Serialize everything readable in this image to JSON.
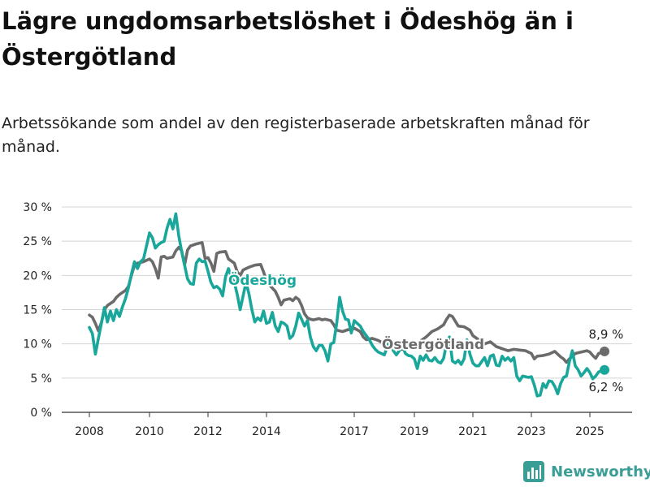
{
  "chart_data": {
    "type": "line",
    "title": "Lägre ungdomsarbetslöshet i Ödeshög än i Östergötland",
    "subtitle": "Arbetssökande som andel av den registerbaserade arbetskraften månad för månad.",
    "ylim": [
      0,
      30
    ],
    "yticks": [
      "0 %",
      "5 %",
      "10 %",
      "15 %",
      "20 %",
      "25 %",
      "30 %"
    ],
    "ytick_values": [
      0,
      5,
      10,
      15,
      20,
      25,
      30
    ],
    "xticks": [
      "2008",
      "2010",
      "2012",
      "2014",
      "2017",
      "2019",
      "2021",
      "2023",
      "2025"
    ],
    "xtick_values": [
      2008,
      2010,
      2012,
      2014,
      2017,
      2019,
      2021,
      2023,
      2025
    ],
    "grid": true,
    "series": [
      {
        "name": "Östergötland",
        "color": "#6b6b6b",
        "end_label": "8,9 %",
        "points": [
          [
            2008.0,
            14.2
          ],
          [
            2008.1,
            13.9
          ],
          [
            2008.2,
            13.0
          ],
          [
            2008.3,
            11.9
          ],
          [
            2008.4,
            13.1
          ],
          [
            2008.5,
            15.0
          ],
          [
            2008.6,
            15.6
          ],
          [
            2008.8,
            16.2
          ],
          [
            2008.9,
            16.8
          ],
          [
            2009.0,
            17.2
          ],
          [
            2009.1,
            17.5
          ],
          [
            2009.2,
            17.8
          ],
          [
            2009.3,
            18.4
          ],
          [
            2009.4,
            20.0
          ],
          [
            2009.5,
            21.5
          ],
          [
            2009.6,
            21.8
          ],
          [
            2009.8,
            22.0
          ],
          [
            2009.9,
            22.2
          ],
          [
            2010.0,
            22.4
          ],
          [
            2010.1,
            22.0
          ],
          [
            2010.2,
            21.0
          ],
          [
            2010.3,
            19.6
          ],
          [
            2010.4,
            22.7
          ],
          [
            2010.5,
            22.8
          ],
          [
            2010.6,
            22.5
          ],
          [
            2010.8,
            22.7
          ],
          [
            2010.9,
            23.6
          ],
          [
            2011.0,
            24.1
          ],
          [
            2011.1,
            23.6
          ],
          [
            2011.2,
            21.5
          ],
          [
            2011.3,
            23.7
          ],
          [
            2011.4,
            24.3
          ],
          [
            2011.6,
            24.6
          ],
          [
            2011.8,
            24.8
          ],
          [
            2011.9,
            22.5
          ],
          [
            2012.0,
            22.6
          ],
          [
            2012.1,
            21.8
          ],
          [
            2012.2,
            20.6
          ],
          [
            2012.3,
            23.2
          ],
          [
            2012.4,
            23.4
          ],
          [
            2012.6,
            23.5
          ],
          [
            2012.7,
            22.4
          ],
          [
            2012.9,
            21.8
          ],
          [
            2013.0,
            20.5
          ],
          [
            2013.1,
            20.0
          ],
          [
            2013.2,
            20.8
          ],
          [
            2013.4,
            21.2
          ],
          [
            2013.6,
            21.5
          ],
          [
            2013.8,
            21.6
          ],
          [
            2013.9,
            20.5
          ],
          [
            2014.0,
            19.2
          ],
          [
            2014.1,
            18.6
          ],
          [
            2014.3,
            17.7
          ],
          [
            2014.4,
            16.8
          ],
          [
            2014.5,
            15.7
          ],
          [
            2014.6,
            16.4
          ],
          [
            2014.8,
            16.6
          ],
          [
            2014.9,
            16.3
          ],
          [
            2015.0,
            16.8
          ],
          [
            2015.1,
            16.5
          ],
          [
            2015.2,
            15.6
          ],
          [
            2015.3,
            14.4
          ],
          [
            2015.4,
            13.8
          ],
          [
            2015.5,
            13.6
          ],
          [
            2015.6,
            13.5
          ],
          [
            2015.8,
            13.7
          ],
          [
            2015.9,
            13.5
          ],
          [
            2016.0,
            13.6
          ],
          [
            2016.2,
            13.4
          ],
          [
            2016.3,
            12.8
          ],
          [
            2016.4,
            12.0
          ],
          [
            2016.6,
            11.8
          ],
          [
            2016.8,
            12.1
          ],
          [
            2016.9,
            12.0
          ],
          [
            2017.0,
            12.3
          ],
          [
            2017.2,
            11.8
          ],
          [
            2017.3,
            11.0
          ],
          [
            2017.4,
            10.6
          ],
          [
            2017.6,
            10.8
          ],
          [
            2017.8,
            10.5
          ],
          [
            2018.0,
            10.0
          ],
          [
            2018.2,
            9.8
          ],
          [
            2018.4,
            9.3
          ],
          [
            2018.6,
            9.2
          ],
          [
            2018.8,
            9.6
          ],
          [
            2019.0,
            10.0
          ],
          [
            2019.2,
            10.4
          ],
          [
            2019.4,
            11.0
          ],
          [
            2019.6,
            11.8
          ],
          [
            2019.8,
            12.2
          ],
          [
            2020.0,
            12.8
          ],
          [
            2020.1,
            13.6
          ],
          [
            2020.2,
            14.2
          ],
          [
            2020.3,
            14.0
          ],
          [
            2020.4,
            13.3
          ],
          [
            2020.5,
            12.6
          ],
          [
            2020.7,
            12.5
          ],
          [
            2020.9,
            12.0
          ],
          [
            2021.0,
            11.2
          ],
          [
            2021.2,
            10.6
          ],
          [
            2021.4,
            10.0
          ],
          [
            2021.6,
            10.3
          ],
          [
            2021.8,
            9.6
          ],
          [
            2022.0,
            9.3
          ],
          [
            2022.2,
            9.0
          ],
          [
            2022.4,
            9.2
          ],
          [
            2022.6,
            9.1
          ],
          [
            2022.8,
            9.0
          ],
          [
            2023.0,
            8.6
          ],
          [
            2023.1,
            7.8
          ],
          [
            2023.2,
            8.2
          ],
          [
            2023.4,
            8.3
          ],
          [
            2023.6,
            8.5
          ],
          [
            2023.8,
            8.9
          ],
          [
            2024.0,
            8.1
          ],
          [
            2024.1,
            7.8
          ],
          [
            2024.2,
            7.3
          ],
          [
            2024.3,
            7.8
          ],
          [
            2024.5,
            8.6
          ],
          [
            2024.7,
            8.8
          ],
          [
            2024.9,
            9.0
          ],
          [
            2025.0,
            8.8
          ],
          [
            2025.1,
            8.3
          ],
          [
            2025.2,
            7.9
          ],
          [
            2025.3,
            8.6
          ],
          [
            2025.5,
            8.9
          ]
        ]
      },
      {
        "name": "Ödeshög",
        "color": "#1aa79b",
        "end_label": "6,2 %",
        "points": [
          [
            2008.0,
            12.4
          ],
          [
            2008.1,
            11.5
          ],
          [
            2008.2,
            8.5
          ],
          [
            2008.3,
            10.8
          ],
          [
            2008.4,
            13.0
          ],
          [
            2008.5,
            15.3
          ],
          [
            2008.6,
            13.2
          ],
          [
            2008.7,
            14.8
          ],
          [
            2008.8,
            13.4
          ],
          [
            2008.9,
            15.0
          ],
          [
            2009.0,
            14.0
          ],
          [
            2009.1,
            15.4
          ],
          [
            2009.2,
            16.6
          ],
          [
            2009.3,
            18.2
          ],
          [
            2009.4,
            20.2
          ],
          [
            2009.5,
            22.0
          ],
          [
            2009.6,
            21.0
          ],
          [
            2009.7,
            22.0
          ],
          [
            2009.8,
            22.4
          ],
          [
            2009.9,
            24.3
          ],
          [
            2010.0,
            26.2
          ],
          [
            2010.1,
            25.5
          ],
          [
            2010.2,
            24.0
          ],
          [
            2010.3,
            24.5
          ],
          [
            2010.4,
            24.8
          ],
          [
            2010.5,
            25.0
          ],
          [
            2010.6,
            26.9
          ],
          [
            2010.7,
            28.2
          ],
          [
            2010.8,
            26.8
          ],
          [
            2010.9,
            29.0
          ],
          [
            2011.0,
            25.8
          ],
          [
            2011.1,
            23.5
          ],
          [
            2011.2,
            21.5
          ],
          [
            2011.3,
            19.5
          ],
          [
            2011.4,
            18.8
          ],
          [
            2011.5,
            18.7
          ],
          [
            2011.6,
            21.8
          ],
          [
            2011.7,
            22.4
          ],
          [
            2011.8,
            22.0
          ],
          [
            2011.9,
            22.1
          ],
          [
            2012.0,
            20.6
          ],
          [
            2012.1,
            19.0
          ],
          [
            2012.2,
            18.2
          ],
          [
            2012.3,
            18.4
          ],
          [
            2012.4,
            18.0
          ],
          [
            2012.5,
            17.0
          ],
          [
            2012.6,
            19.8
          ],
          [
            2012.7,
            21.0
          ],
          [
            2012.8,
            19.8
          ],
          [
            2012.9,
            19.0
          ],
          [
            2013.0,
            17.2
          ],
          [
            2013.1,
            15.0
          ],
          [
            2013.2,
            17.0
          ],
          [
            2013.3,
            19.0
          ],
          [
            2013.4,
            17.3
          ],
          [
            2013.5,
            15.0
          ],
          [
            2013.6,
            13.2
          ],
          [
            2013.7,
            13.8
          ],
          [
            2013.8,
            13.4
          ],
          [
            2013.9,
            14.8
          ],
          [
            2014.0,
            13.0
          ],
          [
            2014.1,
            13.2
          ],
          [
            2014.2,
            14.6
          ],
          [
            2014.3,
            12.6
          ],
          [
            2014.4,
            11.8
          ],
          [
            2014.5,
            13.2
          ],
          [
            2014.6,
            13.0
          ],
          [
            2014.7,
            12.6
          ],
          [
            2014.8,
            10.8
          ],
          [
            2014.9,
            11.2
          ],
          [
            2015.0,
            12.6
          ],
          [
            2015.1,
            14.5
          ],
          [
            2015.2,
            13.6
          ],
          [
            2015.3,
            12.6
          ],
          [
            2015.4,
            13.4
          ],
          [
            2015.5,
            11.0
          ],
          [
            2015.6,
            9.6
          ],
          [
            2015.7,
            9.0
          ],
          [
            2015.8,
            9.8
          ],
          [
            2015.9,
            9.8
          ],
          [
            2016.0,
            9.0
          ],
          [
            2016.1,
            7.5
          ],
          [
            2016.2,
            10.0
          ],
          [
            2016.3,
            10.2
          ],
          [
            2016.4,
            13.0
          ],
          [
            2016.5,
            16.8
          ],
          [
            2016.6,
            14.8
          ],
          [
            2016.7,
            13.6
          ],
          [
            2016.8,
            13.5
          ],
          [
            2016.9,
            11.6
          ],
          [
            2017.0,
            13.4
          ],
          [
            2017.1,
            13.0
          ],
          [
            2017.2,
            12.6
          ],
          [
            2017.3,
            11.8
          ],
          [
            2017.5,
            10.6
          ],
          [
            2017.6,
            9.8
          ],
          [
            2017.7,
            9.2
          ],
          [
            2017.8,
            8.8
          ],
          [
            2017.9,
            8.6
          ],
          [
            2018.0,
            8.4
          ],
          [
            2018.1,
            9.6
          ],
          [
            2018.2,
            10.4
          ],
          [
            2018.3,
            9.0
          ],
          [
            2018.4,
            8.4
          ],
          [
            2018.5,
            9.0
          ],
          [
            2018.6,
            9.8
          ],
          [
            2018.7,
            8.6
          ],
          [
            2018.8,
            8.3
          ],
          [
            2018.9,
            8.2
          ],
          [
            2019.0,
            7.8
          ],
          [
            2019.1,
            6.4
          ],
          [
            2019.2,
            8.2
          ],
          [
            2019.3,
            7.6
          ],
          [
            2019.4,
            8.4
          ],
          [
            2019.5,
            7.6
          ],
          [
            2019.6,
            7.5
          ],
          [
            2019.7,
            8.0
          ],
          [
            2019.8,
            7.4
          ],
          [
            2019.9,
            7.2
          ],
          [
            2020.0,
            7.9
          ],
          [
            2020.1,
            10.0
          ],
          [
            2020.2,
            11.0
          ],
          [
            2020.3,
            7.5
          ],
          [
            2020.4,
            7.2
          ],
          [
            2020.5,
            7.6
          ],
          [
            2020.6,
            7.0
          ],
          [
            2020.7,
            7.8
          ],
          [
            2020.8,
            10.6
          ],
          [
            2020.9,
            8.5
          ],
          [
            2021.0,
            7.2
          ],
          [
            2021.1,
            6.8
          ],
          [
            2021.2,
            6.8
          ],
          [
            2021.3,
            7.4
          ],
          [
            2021.4,
            8.0
          ],
          [
            2021.5,
            6.8
          ],
          [
            2021.6,
            8.2
          ],
          [
            2021.7,
            8.4
          ],
          [
            2021.8,
            6.9
          ],
          [
            2021.9,
            6.8
          ],
          [
            2022.0,
            8.2
          ],
          [
            2022.1,
            7.6
          ],
          [
            2022.2,
            8.0
          ],
          [
            2022.3,
            7.5
          ],
          [
            2022.4,
            8.0
          ],
          [
            2022.5,
            5.3
          ],
          [
            2022.6,
            4.6
          ],
          [
            2022.7,
            5.3
          ],
          [
            2022.8,
            5.2
          ],
          [
            2022.9,
            5.1
          ],
          [
            2023.0,
            5.2
          ],
          [
            2023.1,
            4.0
          ],
          [
            2023.2,
            2.4
          ],
          [
            2023.3,
            2.5
          ],
          [
            2023.4,
            4.2
          ],
          [
            2023.5,
            3.6
          ],
          [
            2023.6,
            4.6
          ],
          [
            2023.7,
            4.5
          ],
          [
            2023.8,
            3.8
          ],
          [
            2023.9,
            2.7
          ],
          [
            2024.0,
            4.2
          ],
          [
            2024.1,
            5.1
          ],
          [
            2024.2,
            5.3
          ],
          [
            2024.3,
            7.4
          ],
          [
            2024.4,
            9.0
          ],
          [
            2024.5,
            6.8
          ],
          [
            2024.6,
            6.2
          ],
          [
            2024.7,
            5.3
          ],
          [
            2024.8,
            5.8
          ],
          [
            2024.9,
            6.4
          ],
          [
            2025.0,
            5.8
          ],
          [
            2025.1,
            4.9
          ],
          [
            2025.2,
            5.3
          ],
          [
            2025.3,
            5.9
          ],
          [
            2025.5,
            6.2
          ]
        ]
      }
    ]
  },
  "brand": {
    "name": "Newsworthy",
    "color": "#3a9d96",
    "icon": "bar-chart-logo-icon"
  }
}
